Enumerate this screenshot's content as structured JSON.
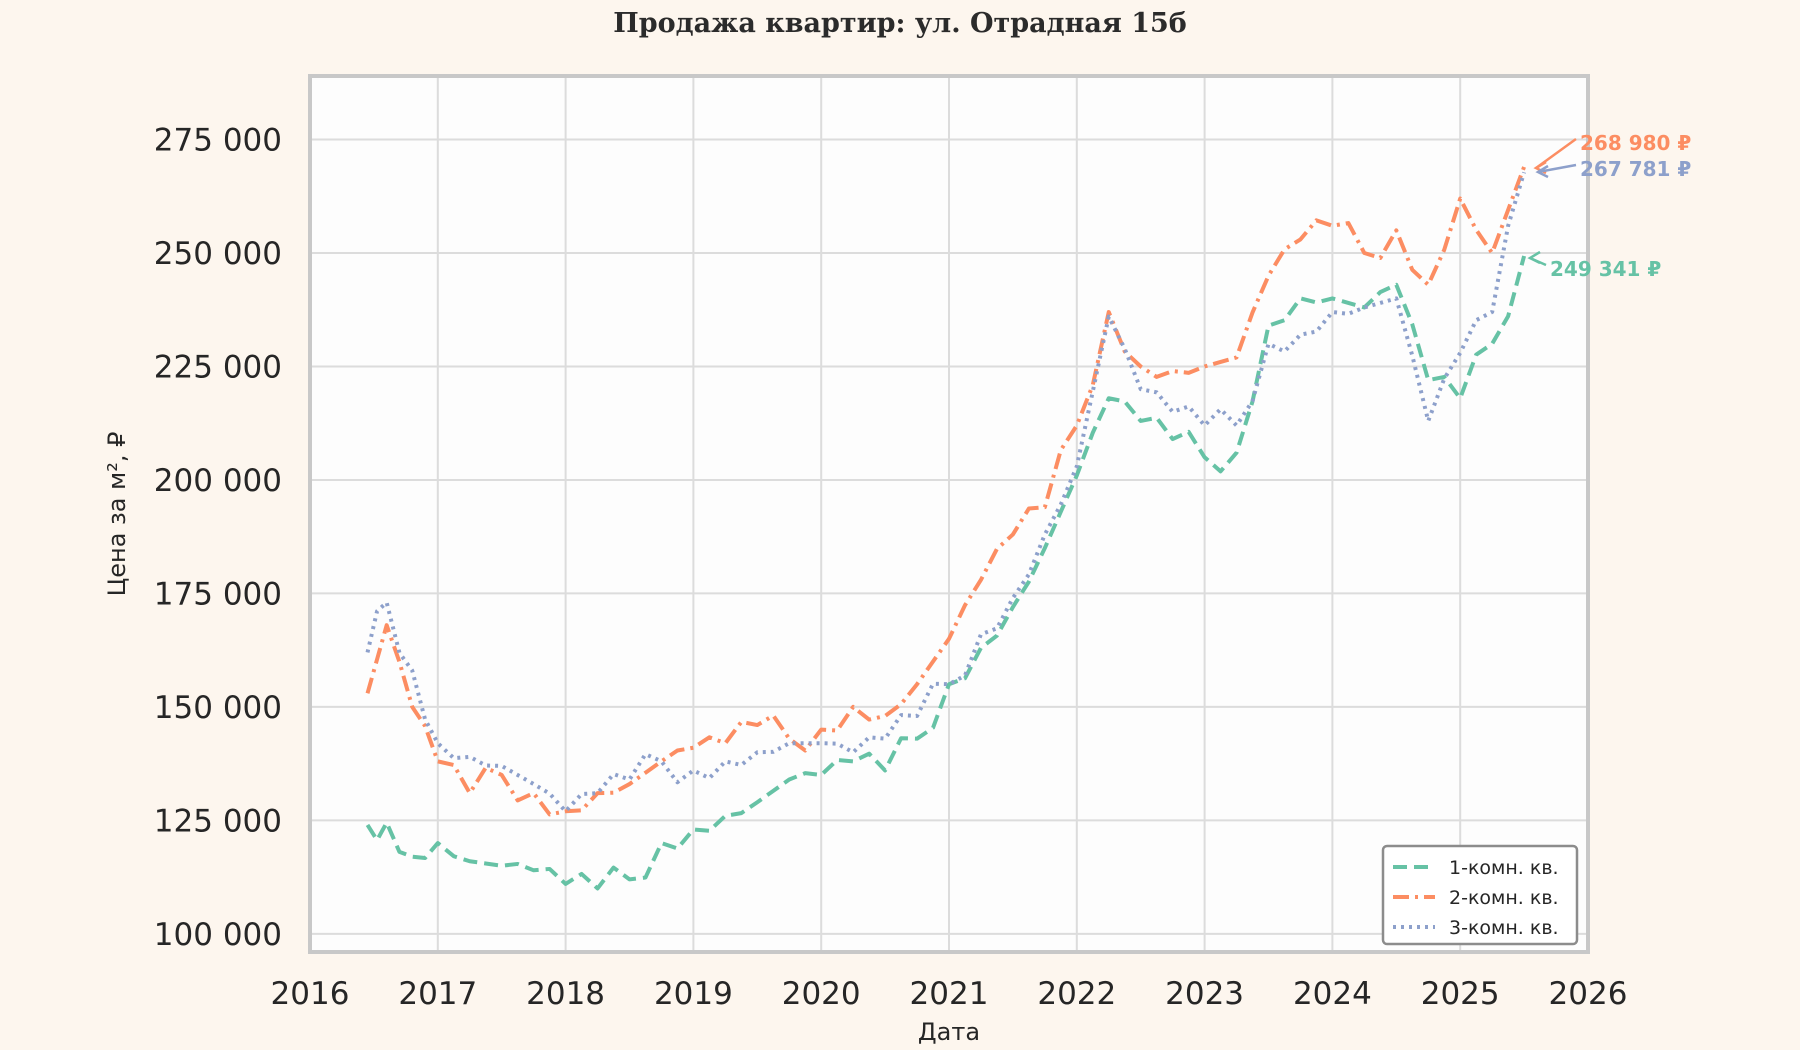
{
  "chart_data": {
    "type": "line",
    "title": "Продажа квартир: ул. Отрадная 15б",
    "xlabel": "Дата",
    "ylabel": "Цена за м², ₽",
    "xlim": [
      2016,
      2026
    ],
    "ylim": [
      100000,
      280000
    ],
    "x_ticks": [
      "2016",
      "2017",
      "2018",
      "2019",
      "2020",
      "2021",
      "2022",
      "2023",
      "2024",
      "2025",
      "2026"
    ],
    "y_ticks": [
      "100 000",
      "125 000",
      "150 000",
      "175 000",
      "200 000",
      "225 000",
      "250 000",
      "275 000"
    ],
    "grid": true,
    "legend_position": "lower right",
    "x": [
      2016.45,
      2016.6,
      2016.8,
      2017.0,
      2017.25,
      2017.5,
      2017.75,
      2018.0,
      2018.25,
      2018.5,
      2018.75,
      2019.0,
      2019.25,
      2019.5,
      2019.75,
      2020.0,
      2020.25,
      2020.5,
      2020.75,
      2021.0,
      2021.25,
      2021.5,
      2021.75,
      2022.0,
      2022.25,
      2022.5,
      2022.75,
      2023.0,
      2023.25,
      2023.5,
      2023.75,
      2024.0,
      2024.25,
      2024.5,
      2024.75,
      2025.0,
      2025.25,
      2025.5
    ],
    "series": [
      {
        "name": "1-комн. кв.",
        "color": "#66c2a5",
        "style": "dashed",
        "values": [
          124000,
          124500,
          117000,
          120000,
          116000,
          115000,
          114000,
          111000,
          110000,
          112000,
          120000,
          123000,
          126000,
          129000,
          134000,
          135000,
          138000,
          136000,
          143000,
          155000,
          163000,
          172000,
          185000,
          201000,
          218000,
          213000,
          209000,
          205000,
          206000,
          234000,
          240000,
          240000,
          238000,
          243000,
          222000,
          218000,
          230000,
          249341
        ]
      },
      {
        "name": "2-комн. кв.",
        "color": "#fc8d62",
        "style": "dashdot",
        "values": [
          153000,
          168000,
          150000,
          138000,
          131000,
          135000,
          131000,
          127000,
          131000,
          133000,
          138000,
          141000,
          142000,
          146000,
          143000,
          145000,
          150000,
          148000,
          155000,
          165000,
          178000,
          188000,
          194000,
          212000,
          237000,
          225000,
          224000,
          225000,
          227000,
          245000,
          253000,
          256000,
          250000,
          255000,
          243000,
          262000,
          250000,
          268980
        ]
      },
      {
        "name": "3-комн. кв.",
        "color": "#8da0cb",
        "style": "dotted",
        "values": [
          162000,
          173000,
          158000,
          142000,
          139000,
          137000,
          133000,
          127000,
          131000,
          134000,
          138000,
          136000,
          138000,
          140000,
          142000,
          142000,
          140000,
          143000,
          148000,
          155000,
          166000,
          174000,
          188000,
          203000,
          236000,
          220000,
          215000,
          212000,
          212000,
          230000,
          232000,
          237000,
          238000,
          240000,
          213000,
          228000,
          237000,
          267781
        ]
      }
    ],
    "annotations": [
      {
        "text": "268 980 ₽",
        "color": "#fc8d62",
        "value": 268980
      },
      {
        "text": "267 781 ₽",
        "color": "#8da0cb",
        "value": 267781
      },
      {
        "text": "249 341 ₽",
        "color": "#66c2a5",
        "value": 249341
      }
    ]
  },
  "colors": {
    "background": "#fdf6ee",
    "plot_bg": "#fdfdfd",
    "grid": "#dcdcdc",
    "frame": "#c8c8c8"
  }
}
